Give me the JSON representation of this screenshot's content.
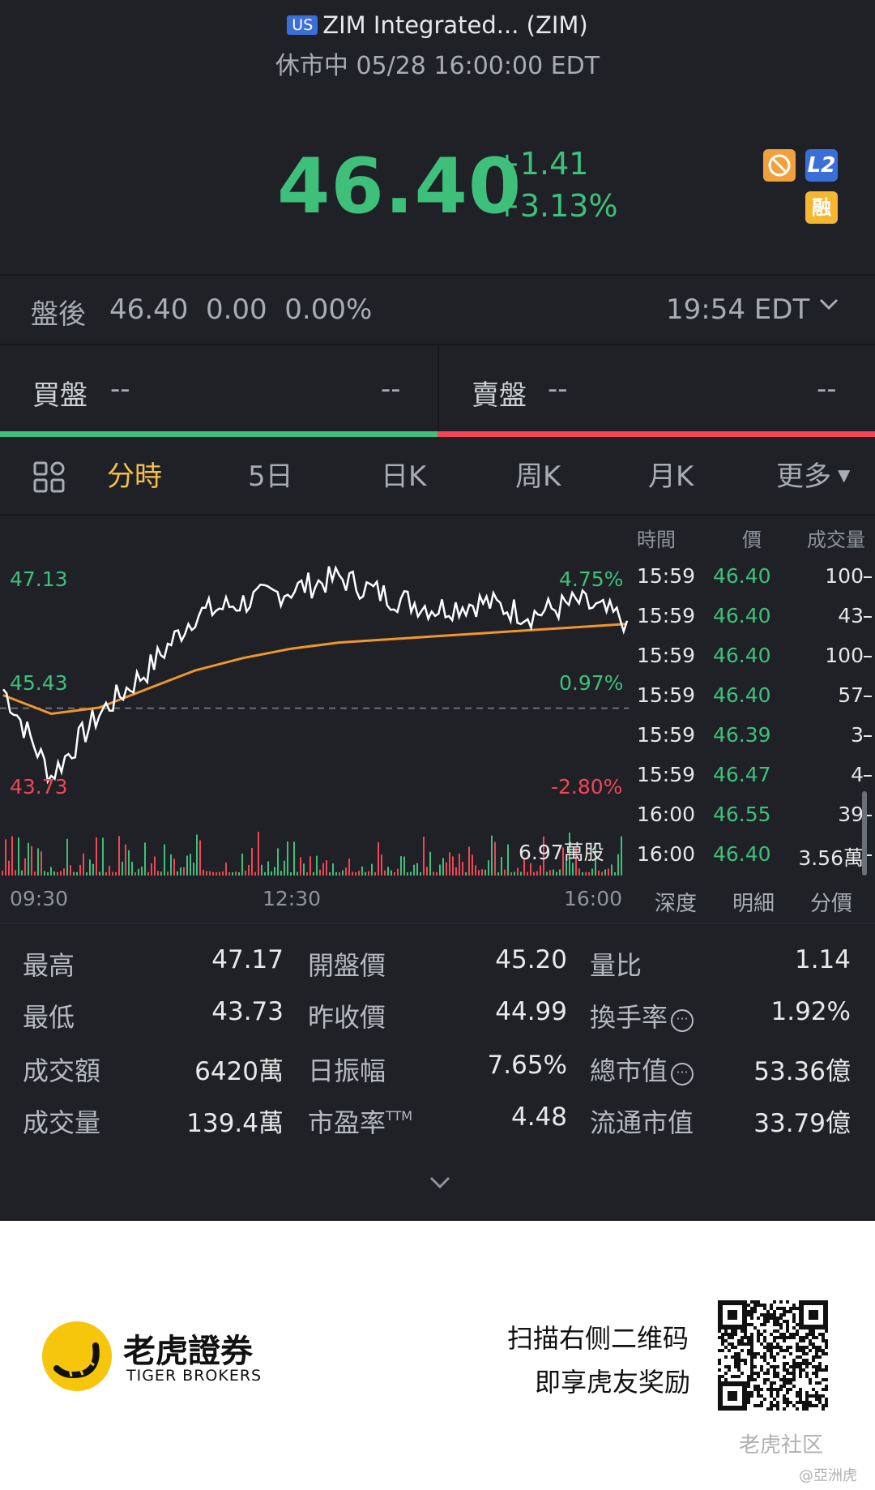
{
  "header": {
    "market_badge": "US",
    "title": "ZIM Integrated... (ZIM)",
    "status": "休市中 05/28 16:00:00 EDT",
    "price": "46.40",
    "change_abs": "+1.41",
    "change_pct": "+3.13%",
    "badges": {
      "l2": "L2",
      "margin": "融"
    }
  },
  "after_hours": {
    "label": "盤後",
    "values": "46.40  0.00  0.00%",
    "time": "19:54 EDT"
  },
  "order_book": {
    "bid_label": "買盤",
    "ask_label": "賣盤",
    "bid_dash1": "--",
    "bid_dash2": "--",
    "ask_dash1": "--",
    "ask_dash2": "--"
  },
  "tabs": {
    "intraday": "分時",
    "five_day": "5日",
    "daily": "日K",
    "weekly": "周K",
    "monthly": "月K",
    "more": "更多"
  },
  "chart_labels": {
    "high": "47.13",
    "mid": "45.43",
    "low": "43.73",
    "high_pct": "4.75%",
    "mid_pct": "0.97%",
    "low_pct": "-2.80%",
    "volume": "6.97萬股",
    "x_start": "09:30",
    "x_mid": "12:30",
    "x_end": "16:00"
  },
  "chart_data": {
    "type": "line",
    "x": [
      "09:30",
      "10:00",
      "10:30",
      "11:00",
      "11:30",
      "12:00",
      "12:30",
      "13:00",
      "13:30",
      "14:00",
      "14:30",
      "15:00",
      "15:30",
      "16:00"
    ],
    "series": [
      {
        "values": [
          45.3,
          43.9,
          44.9,
          45.6,
          46.5,
          46.7,
          46.9,
          47.1,
          46.8,
          46.6,
          46.7,
          46.5,
          46.7,
          46.4
        ]
      },
      {
        "values": [
          45.2,
          44.9,
          45.0,
          45.3,
          45.6,
          45.8,
          45.95,
          46.05,
          46.1,
          46.15,
          46.2,
          46.25,
          46.3,
          46.35
        ]
      }
    ],
    "ylim": [
      43.73,
      47.13
    ],
    "prev_close": 44.99
  },
  "trade_list": {
    "headers": {
      "time": "時間",
      "price": "價",
      "volume": "成交量"
    },
    "rows": [
      {
        "time": "15:59",
        "price": "46.40",
        "volume": "100"
      },
      {
        "time": "15:59",
        "price": "46.40",
        "volume": "43"
      },
      {
        "time": "15:59",
        "price": "46.40",
        "volume": "100"
      },
      {
        "time": "15:59",
        "price": "46.40",
        "volume": "57"
      },
      {
        "time": "15:59",
        "price": "46.39",
        "volume": "3"
      },
      {
        "time": "15:59",
        "price": "46.47",
        "volume": "4"
      },
      {
        "time": "16:00",
        "price": "46.55",
        "volume": "39"
      },
      {
        "time": "16:00",
        "price": "46.40",
        "volume": "3.56萬"
      }
    ],
    "sub_tabs": {
      "depth": "深度",
      "detail": "明細",
      "by_price": "分價"
    }
  },
  "stats": {
    "high_label": "最高",
    "high": "47.17",
    "low_label": "最低",
    "low": "43.73",
    "turnover_label": "成交額",
    "turnover": "6420萬",
    "volume_label": "成交量",
    "volume": "139.4萬",
    "open_label": "開盤價",
    "open": "45.20",
    "prev_close_label": "昨收價",
    "prev_close": "44.99",
    "amplitude_label": "日振幅",
    "amplitude": "7.65%",
    "pe_label": "市盈率",
    "pe_sup": "TTM",
    "pe": "4.48",
    "vol_ratio_label": "量比",
    "vol_ratio": "1.14",
    "turnover_rate_label": "換手率",
    "turnover_rate": "1.92%",
    "market_cap_label": "總市值",
    "market_cap": "53.36億",
    "float_cap_label": "流通市值",
    "float_cap": "33.79億"
  },
  "footer": {
    "brand_cn": "老虎證券",
    "brand_en": "TIGER BROKERS",
    "promo_line1": "扫描右侧二维码",
    "promo_line2": "即享虎友奖励",
    "watermark": "老虎社区",
    "watermark_sub": "@亞洲虎"
  },
  "colors": {
    "up": "#3ec07a",
    "down": "#f04656",
    "accent": "#f5c04a",
    "avg_line": "#f0962c"
  }
}
